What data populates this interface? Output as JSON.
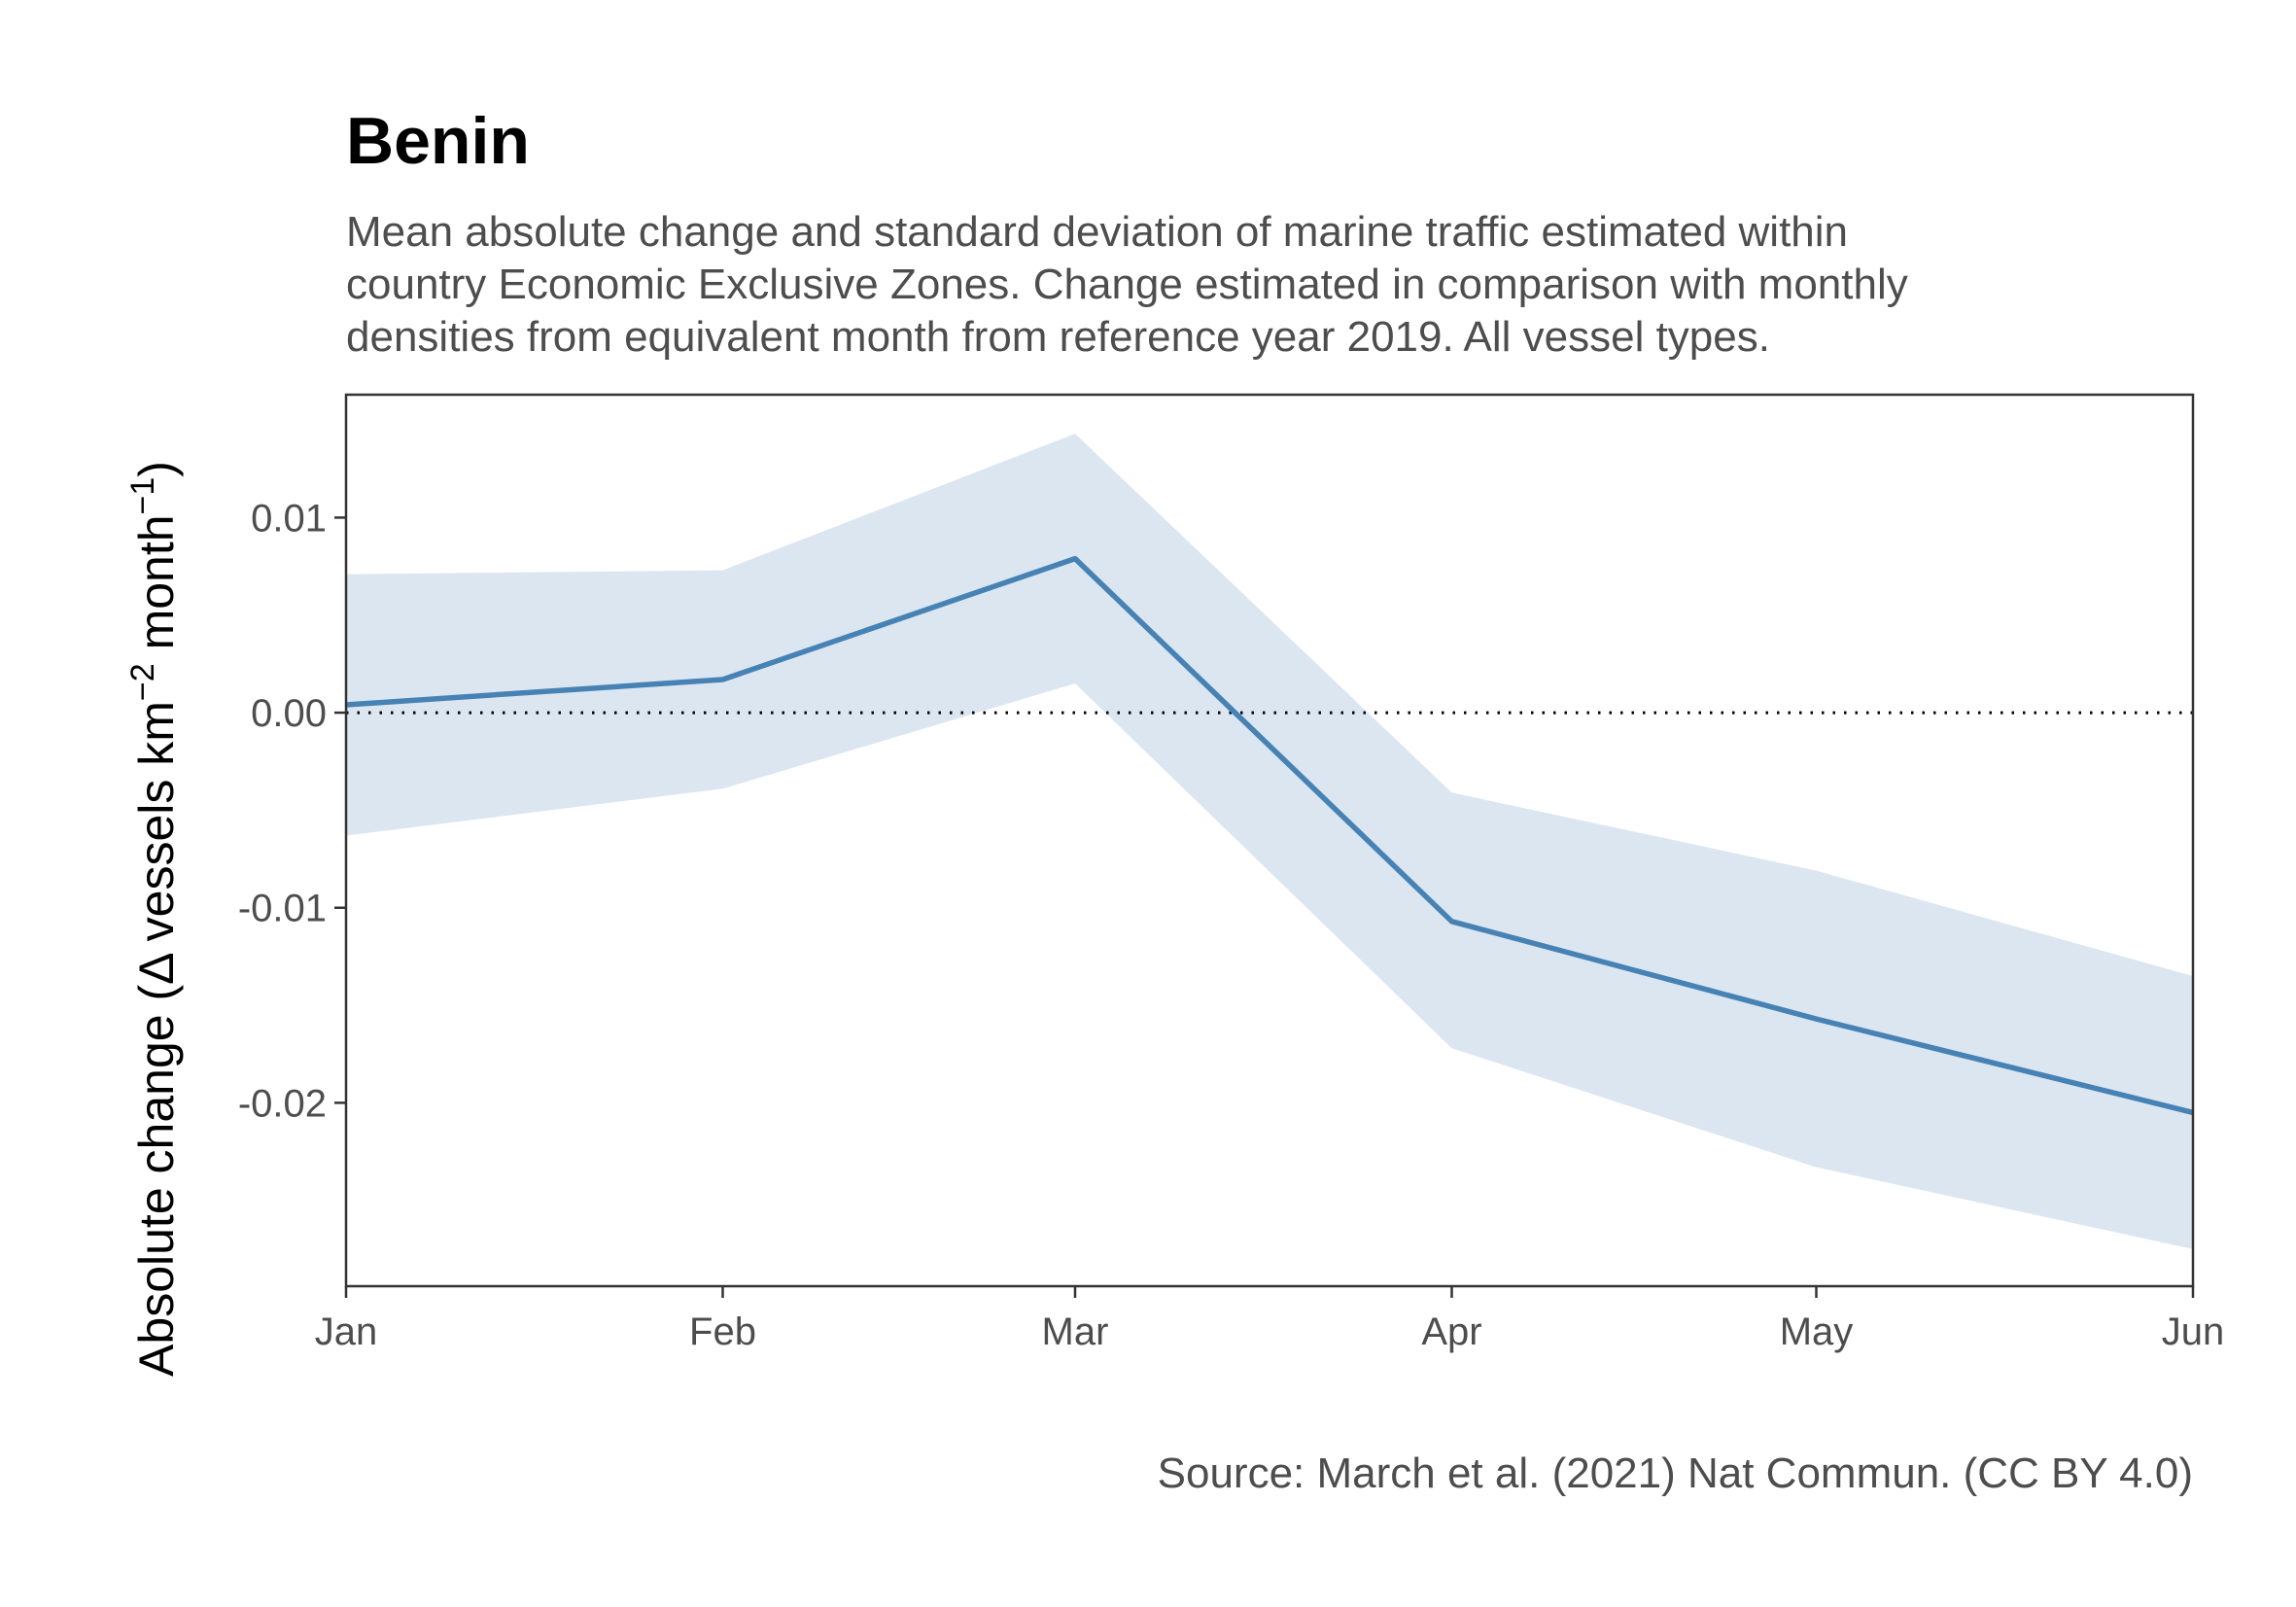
{
  "chart_data": {
    "type": "line",
    "title": "Benin",
    "subtitle_lines": [
      "Mean absolute change and standard deviation of marine traffic estimated within",
      "country Economic Exclusive Zones. Change estimated in comparison with monthly",
      "densities from equivalent month from reference year 2019. All vessel types."
    ],
    "ylabel": {
      "prefix": "Absolute change (",
      "delta": "Δ",
      "mid": " vessels km",
      "sup1": "−2",
      "mid2": " month",
      "sup2": "−1",
      "suffix": ")"
    },
    "caption": "Source: March et al. (2021) Nat Commun. (CC BY 4.0)",
    "x_dates": [
      "2020-01-01",
      "2020-02-01",
      "2020-03-01",
      "2020-04-01",
      "2020-05-01",
      "2020-06-01"
    ],
    "categories": [
      "Jan",
      "Feb",
      "Mar",
      "Apr",
      "May",
      "Jun"
    ],
    "series": [
      {
        "values": [
          0.0004,
          0.0017,
          0.0079,
          -0.0107,
          -0.0157,
          -0.0205
        ],
        "sd_lower": [
          -0.0063,
          -0.0039,
          0.0015,
          -0.0172,
          -0.0233,
          -0.0275
        ],
        "sd_upper": [
          0.0071,
          0.0073,
          0.0143,
          -0.0041,
          -0.0081,
          -0.0135
        ]
      }
    ],
    "ylim": [
      -0.0294,
      0.0163
    ],
    "yticks": [
      -0.02,
      -0.01,
      0.0,
      0.01
    ],
    "ytick_labels": [
      "-0.02",
      "-0.01",
      "0.00",
      "0.01"
    ],
    "reference_line": 0,
    "grid": false,
    "colors": {
      "line": "#4682b4",
      "band": "#dce6f1",
      "reference": "#000000",
      "frame": "#333333"
    }
  }
}
